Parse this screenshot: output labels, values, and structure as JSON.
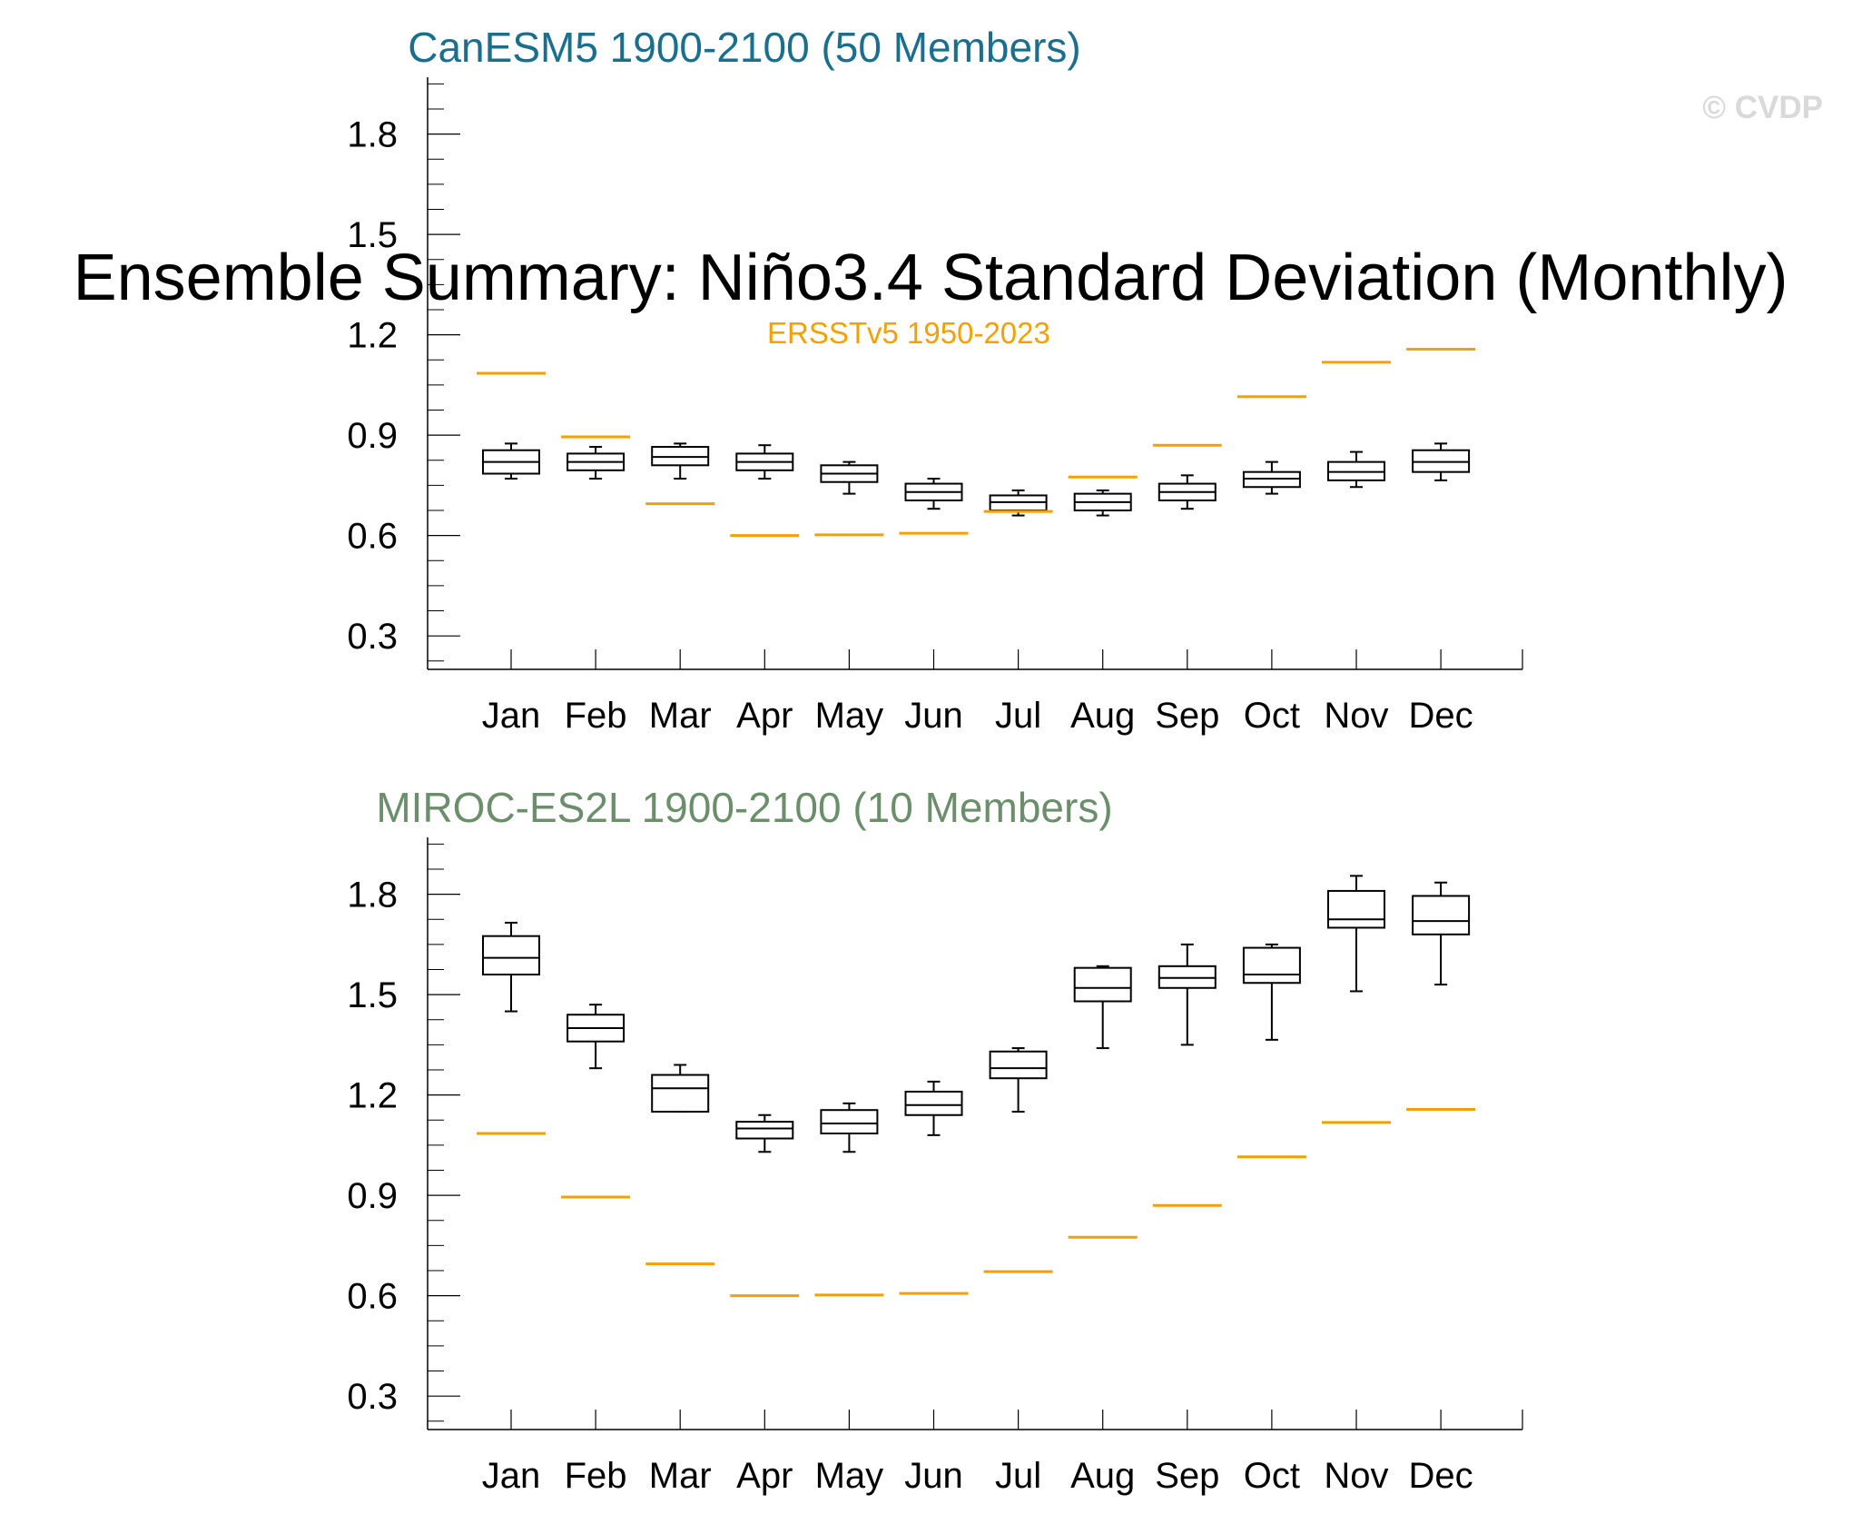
{
  "title": "Ensemble Summary: Niño3.4 Standard Deviation (Monthly)",
  "watermark": "© CVDP",
  "observation_label": "ERSSTv5 1950-2023",
  "colors": {
    "observation": "#f5a000",
    "box": "#000000",
    "panel1_title": "#1a6e8e",
    "panel2_title": "#6b8e6b"
  },
  "chart_data": [
    {
      "type": "box",
      "title": "CanESM5 1900-2100 (50 Members)",
      "categories": [
        "Jan",
        "Feb",
        "Mar",
        "Apr",
        "May",
        "Jun",
        "Jul",
        "Aug",
        "Sep",
        "Oct",
        "Nov",
        "Dec"
      ],
      "ylim": [
        0.2,
        1.97
      ],
      "yticks": [
        "0.3",
        "0.6",
        "0.9",
        "1.2",
        "1.5",
        "1.8"
      ],
      "observation": [
        1.085,
        0.895,
        0.695,
        0.6,
        0.602,
        0.607,
        0.672,
        0.775,
        0.87,
        1.015,
        1.118,
        1.157
      ],
      "boxes": [
        {
          "min": 0.77,
          "q1": 0.785,
          "median": 0.82,
          "q3": 0.855,
          "max": 0.875
        },
        {
          "min": 0.77,
          "q1": 0.795,
          "median": 0.82,
          "q3": 0.845,
          "max": 0.865
        },
        {
          "min": 0.77,
          "q1": 0.81,
          "median": 0.835,
          "q3": 0.865,
          "max": 0.875
        },
        {
          "min": 0.77,
          "q1": 0.795,
          "median": 0.82,
          "q3": 0.845,
          "max": 0.87
        },
        {
          "min": 0.725,
          "q1": 0.76,
          "median": 0.785,
          "q3": 0.81,
          "max": 0.82
        },
        {
          "min": 0.68,
          "q1": 0.705,
          "median": 0.73,
          "q3": 0.755,
          "max": 0.77
        },
        {
          "min": 0.66,
          "q1": 0.675,
          "median": 0.7,
          "q3": 0.72,
          "max": 0.735
        },
        {
          "min": 0.66,
          "q1": 0.675,
          "median": 0.7,
          "q3": 0.725,
          "max": 0.735
        },
        {
          "min": 0.68,
          "q1": 0.705,
          "median": 0.73,
          "q3": 0.755,
          "max": 0.78
        },
        {
          "min": 0.725,
          "q1": 0.745,
          "median": 0.77,
          "q3": 0.79,
          "max": 0.82
        },
        {
          "min": 0.745,
          "q1": 0.765,
          "median": 0.79,
          "q3": 0.82,
          "max": 0.85
        },
        {
          "min": 0.765,
          "q1": 0.79,
          "median": 0.82,
          "q3": 0.855,
          "max": 0.875
        }
      ]
    },
    {
      "type": "box",
      "title": "MIROC-ES2L 1900-2100 (10 Members)",
      "categories": [
        "Jan",
        "Feb",
        "Mar",
        "Apr",
        "May",
        "Jun",
        "Jul",
        "Aug",
        "Sep",
        "Oct",
        "Nov",
        "Dec"
      ],
      "ylim": [
        0.2,
        1.97
      ],
      "yticks": [
        "0.3",
        "0.6",
        "0.9",
        "1.2",
        "1.5",
        "1.8"
      ],
      "observation": [
        1.085,
        0.895,
        0.695,
        0.6,
        0.602,
        0.607,
        0.672,
        0.775,
        0.87,
        1.015,
        1.118,
        1.157
      ],
      "boxes": [
        {
          "min": 1.45,
          "q1": 1.56,
          "median": 1.61,
          "q3": 1.675,
          "max": 1.715
        },
        {
          "min": 1.28,
          "q1": 1.36,
          "median": 1.4,
          "q3": 1.44,
          "max": 1.47
        },
        {
          "min": 1.15,
          "q1": 1.15,
          "median": 1.22,
          "q3": 1.26,
          "max": 1.29
        },
        {
          "min": 1.03,
          "q1": 1.07,
          "median": 1.1,
          "q3": 1.12,
          "max": 1.14
        },
        {
          "min": 1.03,
          "q1": 1.085,
          "median": 1.115,
          "q3": 1.155,
          "max": 1.175
        },
        {
          "min": 1.08,
          "q1": 1.14,
          "median": 1.17,
          "q3": 1.21,
          "max": 1.24
        },
        {
          "min": 1.15,
          "q1": 1.25,
          "median": 1.28,
          "q3": 1.33,
          "max": 1.34
        },
        {
          "min": 1.34,
          "q1": 1.48,
          "median": 1.52,
          "q3": 1.58,
          "max": 1.585
        },
        {
          "min": 1.35,
          "q1": 1.52,
          "median": 1.55,
          "q3": 1.585,
          "max": 1.65
        },
        {
          "min": 1.365,
          "q1": 1.535,
          "median": 1.56,
          "q3": 1.64,
          "max": 1.65
        },
        {
          "min": 1.51,
          "q1": 1.7,
          "median": 1.725,
          "q3": 1.81,
          "max": 1.855
        },
        {
          "min": 1.53,
          "q1": 1.68,
          "median": 1.72,
          "q3": 1.795,
          "max": 1.835
        }
      ]
    }
  ]
}
